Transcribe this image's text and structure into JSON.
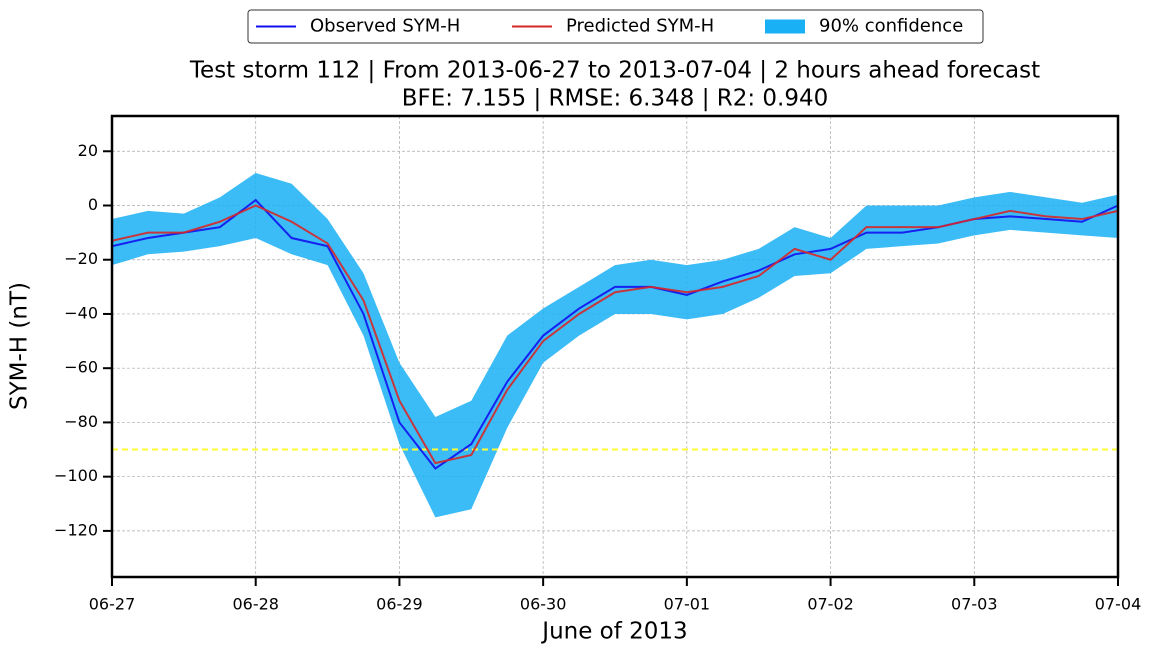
{
  "chart_data": {
    "type": "line",
    "title": "Test storm 112 | From 2013-06-27 to 2013-07-04 | 2 hours ahead forecast",
    "subtitle": "BFE: 7.155 | RMSE: 6.348 | R2: 0.940",
    "x_label": "June of 2013",
    "y_label": "SYM-H (nT)",
    "x": [
      0,
      0.25,
      0.5,
      0.75,
      1,
      1.25,
      1.5,
      1.75,
      2,
      2.25,
      2.5,
      2.75,
      3,
      3.25,
      3.5,
      3.75,
      4,
      4.25,
      4.5,
      4.75,
      5,
      5.25,
      5.5,
      5.75,
      6,
      6.25,
      6.5,
      6.75,
      7
    ],
    "series": [
      {
        "name": "Observed SYM-H",
        "color": "#1010f0",
        "values": [
          -15,
          -12,
          -10,
          -8,
          2,
          -12,
          -15,
          -40,
          -80,
          -97,
          -88,
          -65,
          -48,
          -38,
          -30,
          -30,
          -33,
          -28,
          -24,
          -18,
          -16,
          -10,
          -10,
          -8,
          -5,
          -4,
          -5,
          -6,
          0
        ]
      },
      {
        "name": "Predicted SYM-H",
        "color": "#d62728",
        "values": [
          -13,
          -10,
          -10,
          -6,
          0,
          -6,
          -14,
          -35,
          -72,
          -95,
          -92,
          -68,
          -50,
          -40,
          -32,
          -30,
          -32,
          -30,
          -26,
          -16,
          -20,
          -8,
          -8,
          -8,
          -5,
          -2,
          -4,
          -5,
          -2
        ]
      }
    ],
    "band": {
      "name": "90% confidence",
      "color": "#1ab0f5",
      "lower": [
        -22,
        -18,
        -17,
        -15,
        -12,
        -18,
        -22,
        -48,
        -88,
        -115,
        -112,
        -82,
        -58,
        -48,
        -40,
        -40,
        -42,
        -40,
        -34,
        -26,
        -25,
        -16,
        -15,
        -14,
        -11,
        -9,
        -10,
        -11,
        -12
      ],
      "upper": [
        -5,
        -2,
        -3,
        3,
        12,
        8,
        -5,
        -25,
        -58,
        -78,
        -72,
        -48,
        -38,
        -30,
        -22,
        -20,
        -22,
        -20,
        -16,
        -8,
        -12,
        0,
        0,
        0,
        3,
        5,
        3,
        1,
        4
      ]
    },
    "threshold": -90,
    "threshold_color": "#ffff33",
    "xlim": [
      0,
      7
    ],
    "xticks": [
      {
        "value": 0,
        "label": "06-27"
      },
      {
        "value": 1,
        "label": "06-28"
      },
      {
        "value": 2,
        "label": "06-29"
      },
      {
        "value": 3,
        "label": "06-30"
      },
      {
        "value": 4,
        "label": "07-01"
      },
      {
        "value": 5,
        "label": "07-02"
      },
      {
        "value": 6,
        "label": "07-03"
      },
      {
        "value": 7,
        "label": "07-04"
      }
    ],
    "ylim": [
      -137,
      33
    ],
    "yticks": [
      {
        "value": -120,
        "label": "−120"
      },
      {
        "value": -100,
        "label": "−100"
      },
      {
        "value": -80,
        "label": "−80"
      },
      {
        "value": -60,
        "label": "−60"
      },
      {
        "value": -40,
        "label": "−40"
      },
      {
        "value": -20,
        "label": "−20"
      },
      0,
      20
    ],
    "grid": true,
    "legend": "top"
  }
}
